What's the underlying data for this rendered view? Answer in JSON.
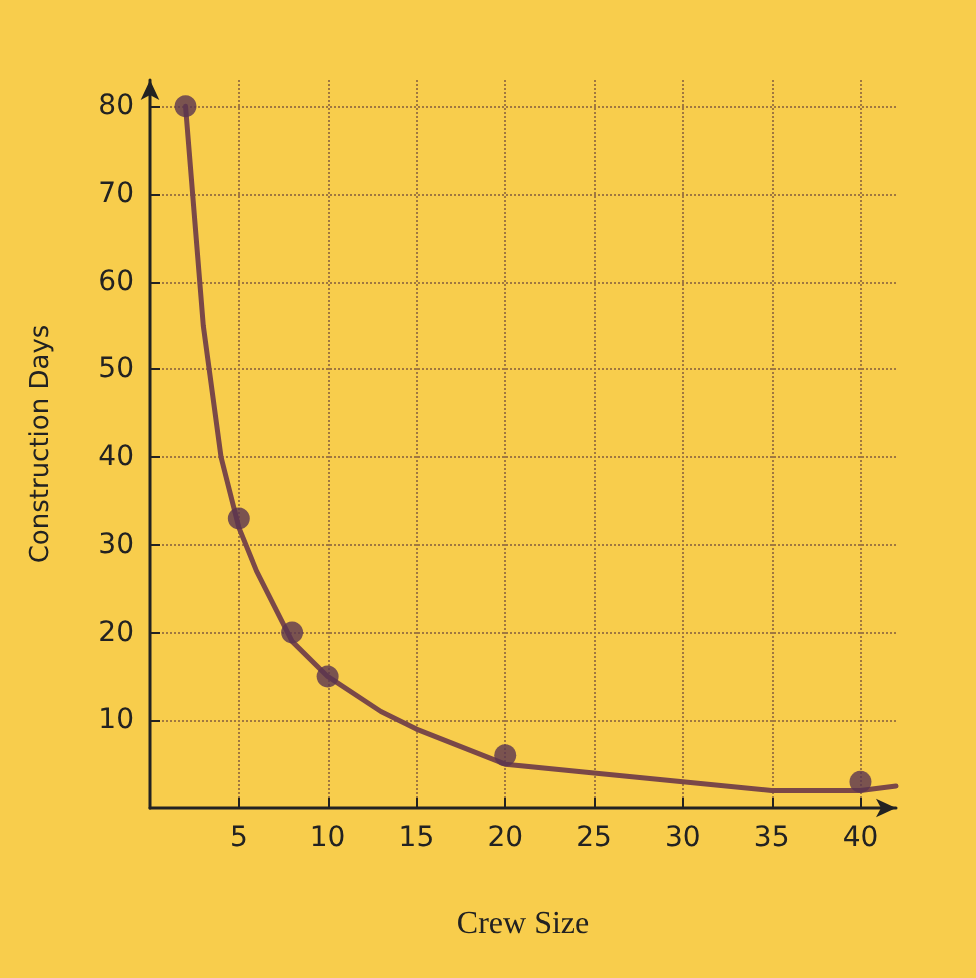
{
  "chart_data": {
    "type": "scatter",
    "xlabel": "Crew Size",
    "ylabel": "Construction Days",
    "x": [
      2,
      5,
      8,
      10,
      20,
      40
    ],
    "series": [
      {
        "color": "#5a3550",
        "marker": "circle",
        "values": [
          80,
          33,
          20,
          15,
          6,
          3
        ]
      },
      {
        "type": "line",
        "marker": "none",
        "color": "#7a4848",
        "x": [
          2,
          3,
          4,
          5,
          6,
          8,
          10,
          13,
          15,
          20,
          25,
          30,
          35,
          40,
          42
        ],
        "values": [
          80,
          55,
          40,
          32,
          27,
          19,
          15,
          11,
          9,
          5,
          4,
          3,
          2,
          2,
          2.5
        ]
      }
    ],
    "xlim": [
      0,
      42
    ],
    "ylim": [
      0,
      83
    ],
    "xticks": [
      5,
      10,
      15,
      20,
      25,
      30,
      35,
      40
    ],
    "yticks": [
      10,
      20,
      30,
      40,
      50,
      60,
      70,
      80
    ],
    "grid": true,
    "line_style": "solid"
  }
}
